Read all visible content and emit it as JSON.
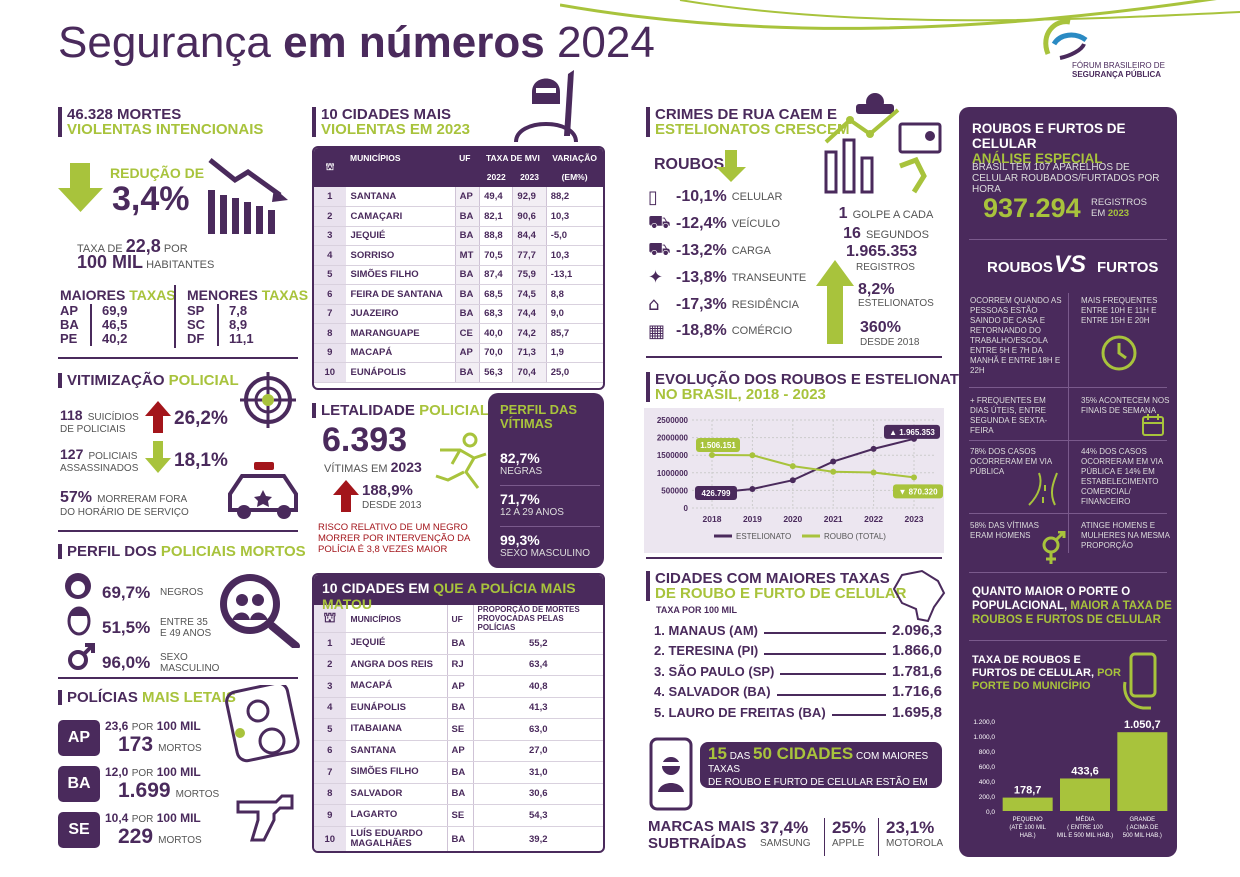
{
  "header": {
    "title_part1": "Segurança",
    "title_part2": "em números",
    "title_part3": "2024",
    "logo_line1": "FÓRUM BRASILEIRO DE",
    "logo_line2": "SEGURANÇA PÚBLICA"
  },
  "mvi": {
    "title1": "46.328 MORTES",
    "title2": "VIOLENTAS INTENCIONAIS",
    "reduction_label": "REDUÇÃO DE",
    "reduction_value": "3,4%",
    "rate_prefix": "TAXA DE",
    "rate_value": "22,8",
    "rate_suffix": "POR",
    "rate_unit": "100 MIL",
    "rate_unit2": "HABITANTES",
    "maiores_label": "MAIORES",
    "menores_label": "MENORES",
    "taxas_label": "TAXAS",
    "maiores": [
      {
        "uf": "AP",
        "v": "69,9"
      },
      {
        "uf": "BA",
        "v": "46,5"
      },
      {
        "uf": "PE",
        "v": "40,2"
      }
    ],
    "menores": [
      {
        "uf": "SP",
        "v": "7,8"
      },
      {
        "uf": "SC",
        "v": "8,9"
      },
      {
        "uf": "DF",
        "v": "11,1"
      }
    ]
  },
  "vitimizacao": {
    "title1": "VITIMIZAÇÃO",
    "title2": "POLICIAL",
    "row1_n": "118",
    "row1_t1": "SUICÍDIOS",
    "row1_t2": "DE POLICIAIS",
    "row1_pct": "26,2%",
    "row2_n": "127",
    "row2_t1": "POLICIAIS",
    "row2_t2": "ASSASSINADOS",
    "row2_pct": "18,1%",
    "row3_n": "57%",
    "row3_t1": "MORRERAM FORA",
    "row3_t2": "DO HORÁRIO DE SERVIÇO"
  },
  "perfil_policiais": {
    "title1": "PERFIL DOS",
    "title2": "POLICIAIS MORTOS",
    "rows": [
      {
        "v": "69,7%",
        "t": "NEGROS",
        "t2": ""
      },
      {
        "v": "51,5%",
        "t": "ENTRE 35",
        "t2": "E 49 ANOS"
      },
      {
        "v": "96,0%",
        "t": "SEXO",
        "t2": "MASCULINO"
      }
    ]
  },
  "letais": {
    "title1": "POLÍCIAS",
    "title2": "MAIS LETAIS",
    "por": "POR",
    "cem_mil": "100 MIL",
    "mortos": "MORTOS",
    "rows": [
      {
        "uf": "AP",
        "rate": "23,6",
        "n": "173"
      },
      {
        "uf": "BA",
        "rate": "12,0",
        "n": "1.699"
      },
      {
        "uf": "SE",
        "rate": "10,4",
        "n": "229"
      }
    ]
  },
  "cidades_violentas": {
    "title1": "10 CIDADES MAIS",
    "title2": "VIOLENTAS EM 2023",
    "col_mun": "MUNICÍPIOS",
    "col_uf": "UF",
    "col_taxa": "TAXA DE MVI",
    "col_var": "VARIAÇÃO",
    "col_var2": "(EM%)",
    "y1": "2022",
    "y2": "2023",
    "rows": [
      [
        "1",
        "SANTANA",
        "AP",
        "49,4",
        "92,9",
        "88,2"
      ],
      [
        "2",
        "CAMAÇARI",
        "BA",
        "82,1",
        "90,6",
        "10,3"
      ],
      [
        "3",
        "JEQUIÉ",
        "BA",
        "88,8",
        "84,4",
        "-5,0"
      ],
      [
        "4",
        "SORRISO",
        "MT",
        "70,5",
        "77,7",
        "10,3"
      ],
      [
        "5",
        "SIMÕES FILHO",
        "BA",
        "87,4",
        "75,9",
        "-13,1"
      ],
      [
        "6",
        "FEIRA DE SANTANA",
        "BA",
        "68,5",
        "74,5",
        "8,8"
      ],
      [
        "7",
        "JUAZEIRO",
        "BA",
        "68,3",
        "74,4",
        "9,0"
      ],
      [
        "8",
        "MARANGUAPE",
        "CE",
        "40,0",
        "74,2",
        "85,7"
      ],
      [
        "9",
        "MACAPÁ",
        "AP",
        "70,0",
        "71,3",
        "1,9"
      ],
      [
        "10",
        "EUNÁPOLIS",
        "BA",
        "56,3",
        "70,4",
        "25,0"
      ]
    ]
  },
  "letalidade": {
    "title1": "LETALIDADE",
    "title2": "POLICIAL",
    "value": "6.393",
    "sub": "VÍTIMAS EM",
    "year": "2023",
    "growth": "188,9%",
    "growth_sub": "DESDE 2013",
    "risk": "RISCO RELATIVO DE UM NEGRO MORRER POR INTERVENÇÃO DA POLÍCIA É 3,8 VEZES MAIOR"
  },
  "perfil_vitimas": {
    "title": "PERFIL DAS VÍTIMAS",
    "rows": [
      {
        "v": "82,7%",
        "t": "NEGRAS"
      },
      {
        "v": "71,7%",
        "t": "12 A 29 ANOS"
      },
      {
        "v": "99,3%",
        "t": "SEXO MASCULINO"
      }
    ]
  },
  "cidades_policia": {
    "title1": "10 CIDADES EM",
    "title2": "QUE A POLÍCIA MAIS MATOU",
    "col_mun": "MUNICÍPIOS",
    "col_uf": "UF",
    "col_prop": "PROPORÇÃO DE MORTES PROVOCADAS PELAS POLÍCIAS",
    "rows": [
      [
        "1",
        "JEQUIÉ",
        "BA",
        "55,2"
      ],
      [
        "2",
        "ANGRA DOS REIS",
        "RJ",
        "63,4"
      ],
      [
        "3",
        "MACAPÁ",
        "AP",
        "40,8"
      ],
      [
        "4",
        "EUNÁPOLIS",
        "BA",
        "41,3"
      ],
      [
        "5",
        "ITABAIANA",
        "SE",
        "63,0"
      ],
      [
        "6",
        "SANTANA",
        "AP",
        "27,0"
      ],
      [
        "7",
        "SIMÕES FILHO",
        "BA",
        "31,0"
      ],
      [
        "8",
        "SALVADOR",
        "BA",
        "30,6"
      ],
      [
        "9",
        "LAGARTO",
        "SE",
        "54,3"
      ],
      [
        "10",
        "LUÍS EDUARDO MAGALHÃES",
        "BA",
        "39,2"
      ]
    ]
  },
  "crimes_rua": {
    "title1": "CRIMES DE RUA CAEM E",
    "title2": "ESTELIONATOS CRESCEM",
    "roubos_label": "ROUBOS",
    "rows": [
      {
        "v": "-10,1%",
        "t": "CELULAR",
        "icon": "phone-icon"
      },
      {
        "v": "-12,4%",
        "t": "VEÍCULO",
        "icon": "car-icon"
      },
      {
        "v": "-13,2%",
        "t": "CARGA",
        "icon": "truck-icon"
      },
      {
        "v": "-13,8%",
        "t": "TRANSEUNTE",
        "icon": "pedestrian-icon"
      },
      {
        "v": "-17,3%",
        "t": "RESIDÊNCIA",
        "icon": "house-icon"
      },
      {
        "v": "-18,8%",
        "t": "COMÉRCIO",
        "icon": "store-icon"
      }
    ],
    "golpe_n": "1",
    "golpe_t": "GOLPE A CADA",
    "golpe_s": "16",
    "golpe_s_t": "SEGUNDOS",
    "registros": "1.965.353",
    "registros_t": "REGISTROS",
    "est_pct": "8,2%",
    "est_t": "ESTELIONATOS",
    "since_pct": "360%",
    "since_t": "DESDE 2018"
  },
  "evolucao": {
    "title1": "EVOLUÇÃO DOS ROUBOS E ESTELIONATOS",
    "title2": "NO BRASIL, 2018 - 2023",
    "label_start_roubo": "1.506.151",
    "label_start_est": "426.799",
    "label_end_est": "1.965.353",
    "label_end_roubo": "870.320",
    "legend_est": "ESTELIONATO",
    "legend_roubo": "ROUBO (TOTAL)"
  },
  "celular_cidades": {
    "title1": "CIDADES COM MAIORES TAXAS",
    "title2": "DE ROUBO E FURTO DE CELULAR",
    "sub": "TAXA POR 100 MIL",
    "rows": [
      {
        "c": "1. MANAUS (AM)",
        "v": "2.096,3"
      },
      {
        "c": "2. TERESINA (PI)",
        "v": "1.866,0"
      },
      {
        "c": "3. SÃO PAULO (SP)",
        "v": "1.781,6"
      },
      {
        "c": "4. SALVADOR (BA)",
        "v": "1.716,6"
      },
      {
        "c": "5. LAURO DE FREITAS (BA)",
        "v": "1.695,8"
      }
    ],
    "sp_n": "15",
    "sp_das": "DAS",
    "sp_50": "50 CIDADES",
    "sp_t1": "COM MAIORES TAXAS",
    "sp_t2": "DE ROUBO E FURTO DE CELULAR ESTÃO EM SP"
  },
  "marcas": {
    "title1": "MARCAS MAIS",
    "title2": "SUBTRAÍDAS",
    "rows": [
      {
        "v": "37,4%",
        "t": "SAMSUNG"
      },
      {
        "v": "25%",
        "t": "APPLE"
      },
      {
        "v": "23,1%",
        "t": "MOTOROLA"
      }
    ]
  },
  "celular_panel": {
    "title1": "ROUBOS E FURTOS DE CELULAR",
    "title2": "ANÁLISE ESPECIAL",
    "sub": "BRASIL TEM 107 APARELHOS DE CELULAR ROUBADOS/FURTADOS POR HORA",
    "value": "937.294",
    "reg1": "REGISTROS",
    "reg2": "EM",
    "reg_year": "2023",
    "roubos": "ROUBOS",
    "vs": "VS",
    "furtos": "FURTOS",
    "r1_left": "OCORREM QUANDO AS PESSOAS ESTÃO SAINDO DE CASA E RETORNANDO DO TRABALHO/ESCOLA ENTRE 5H E 7H DA MANHÃ E ENTRE 18H E 22H",
    "r1_right": "MAIS FREQUENTES ENTRE 10H E 11H E ENTRE 15H E 20H",
    "r2_left": "+ FREQUENTES EM DIAS ÚTEIS, ENTRE SEGUNDA E SEXTA-FEIRA",
    "r2_right": "35% ACONTECEM NOS FINAIS DE SEMANA",
    "r3_left": "78% DOS CASOS OCORRERAM EM VIA PÚBLICA",
    "r3_right": "44% DOS CASOS OCORRERAM EM VIA PÚBLICA E 14% EM ESTABELECIMENTO COMERCIAL/ FINANCEIRO",
    "r4_left": "58% DAS VÍTIMAS ERAM HOMENS",
    "r4_right": "ATINGE HOMENS E MULHERES NA MESMA PROPORÇÃO",
    "porte1": "QUANTO MAIOR O PORTE O POPULACIONAL,",
    "porte2": "MAIOR A TAXA DE ROUBOS E FURTOS DE CELULAR",
    "chart_title1": "TAXA DE ROUBOS E FURTOS DE CELULAR,",
    "chart_title2": "POR PORTE DO MUNICÍPIO"
  },
  "colors": {
    "purple": "#4a2a5c",
    "green": "#a8c33c",
    "red": "#a3151b"
  },
  "chart_data": [
    {
      "type": "line",
      "title": "EVOLUÇÃO DOS ROUBOS E ESTELIONATOS NO BRASIL, 2018 - 2023",
      "x": [
        "2018",
        "2019",
        "2020",
        "2021",
        "2022",
        "2023"
      ],
      "ylim": [
        0,
        2500000
      ],
      "yticks": [
        "0",
        "500000",
        "1000000",
        "1500000",
        "2000000",
        "2500000"
      ],
      "series": [
        {
          "name": "ESTELIONATO",
          "values": [
            426799,
            540000,
            790000,
            1320000,
            1680000,
            1965353
          ]
        },
        {
          "name": "ROUBO (TOTAL)",
          "values": [
            1506151,
            1500000,
            1190000,
            1030000,
            1010000,
            870320
          ]
        }
      ],
      "legend": "bottom",
      "grid": true
    },
    {
      "type": "bar",
      "title": "TAXA DE ROUBOS E FURTOS DE CELULAR, POR PORTE DO MUNICÍPIO",
      "categories": [
        "PEQUENO (ATÉ 100 MIL HAB.)",
        "MÉDIA ( ENTRE 100 MIL E 500 MIL HAB.)",
        "GRANDE ( ACIMA DE 500 MIL HAB.)"
      ],
      "values": [
        178.7,
        433.6,
        1050.7
      ],
      "labels": [
        "178,7",
        "433,6",
        "1.050,7"
      ],
      "ylim": [
        0,
        1200
      ],
      "yticks": [
        "0,0",
        "200,0",
        "400,0",
        "600,0",
        "800,0",
        "1.000,0",
        "1.200,0"
      ]
    }
  ]
}
